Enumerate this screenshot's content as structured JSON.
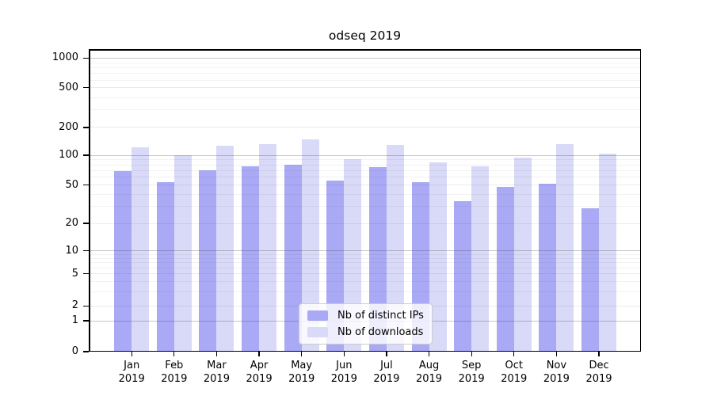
{
  "chart_data": {
    "type": "bar",
    "title": "odseq 2019",
    "categories": [
      "Jan",
      "Feb",
      "Mar",
      "Apr",
      "May",
      "Jun",
      "Jul",
      "Aug",
      "Sep",
      "Oct",
      "Nov",
      "Dec"
    ],
    "category_year": "2019",
    "series": [
      {
        "name": "Nb of distinct IPs",
        "color": "#a9a9f5",
        "values": [
          70,
          54,
          71,
          78,
          80,
          56,
          76,
          54,
          34,
          48,
          52,
          29
        ]
      },
      {
        "name": "Nb of downloads",
        "color": "#d9d9f8",
        "values": [
          123,
          100,
          127,
          131,
          150,
          92,
          130,
          85,
          78,
          95,
          131,
          105
        ]
      }
    ],
    "y_axis": {
      "scale": "symlog",
      "tick_labels": [
        "0",
        "1",
        "2",
        "5",
        "10",
        "20",
        "50",
        "100",
        "200",
        "500",
        "1000"
      ],
      "tick_anchors": [
        [
          0,
          0
        ],
        [
          1,
          0.102
        ],
        [
          2,
          0.151
        ],
        [
          5,
          0.257
        ],
        [
          10,
          0.333
        ],
        [
          20,
          0.424
        ],
        [
          50,
          0.55
        ],
        [
          100,
          0.649
        ],
        [
          200,
          0.741
        ],
        [
          500,
          0.872
        ],
        [
          1000,
          0.97
        ]
      ],
      "major_grid_values": [
        1,
        10,
        100,
        1000
      ],
      "minor_grid_values": [
        3,
        4,
        6,
        7,
        8,
        9,
        30,
        40,
        60,
        70,
        80,
        90,
        300,
        400,
        600,
        700,
        800,
        900
      ]
    },
    "grid": true,
    "legend_position": "lower center"
  }
}
